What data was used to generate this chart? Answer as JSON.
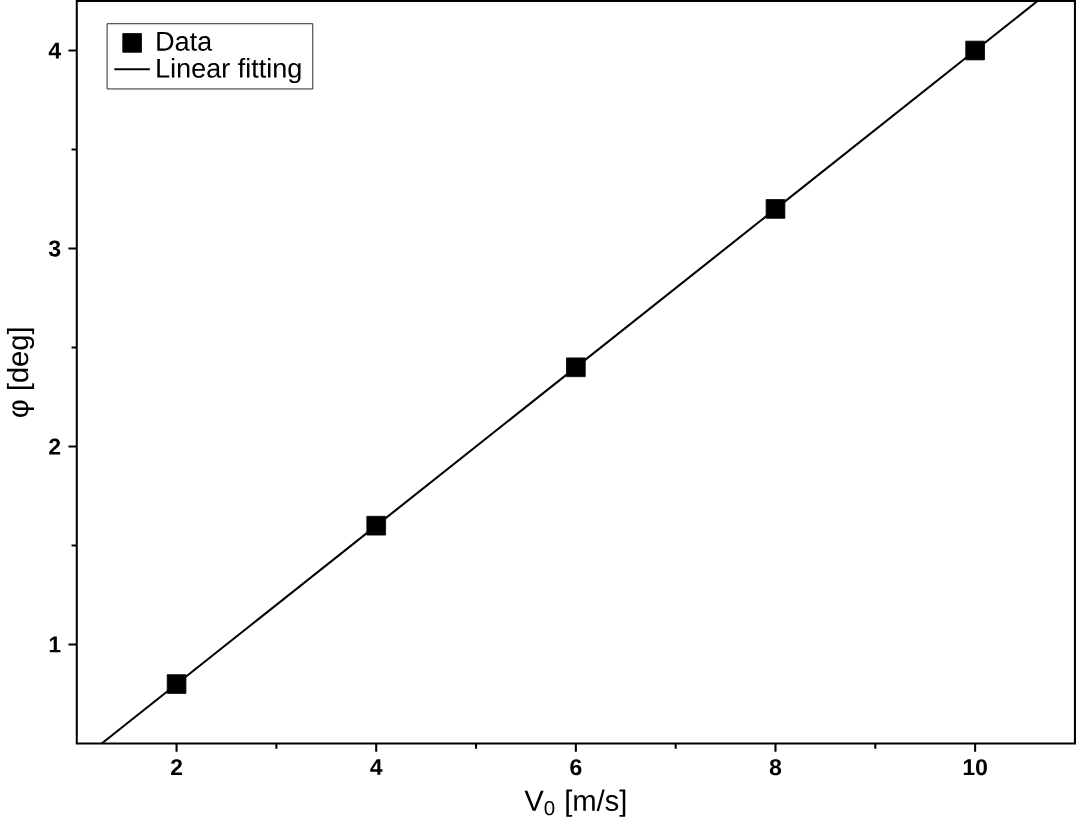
{
  "chart_data": {
    "type": "scatter",
    "xlabel": "V$_{0}$ [m/s]",
    "ylabel": "φ [deg]",
    "xlim": [
      1,
      11
    ],
    "ylim": [
      0.5,
      4.25
    ],
    "xticks": [
      2,
      4,
      6,
      8,
      10
    ],
    "yticks": [
      1,
      2,
      3,
      4
    ],
    "legend": "top left",
    "grid": false,
    "series": [
      {
        "name": "Data",
        "marker": "square",
        "color": "#000000",
        "x": [
          2,
          4,
          6,
          8,
          10
        ],
        "values": [
          0.8,
          1.6,
          2.4,
          3.2,
          4.0
        ]
      },
      {
        "name": "Linear fitting",
        "type": "line",
        "marker": "none",
        "line_style": "solid",
        "color": "#000000",
        "x": [
          1.25,
          10.625
        ],
        "values": [
          0.5,
          4.25
        ]
      }
    ]
  }
}
